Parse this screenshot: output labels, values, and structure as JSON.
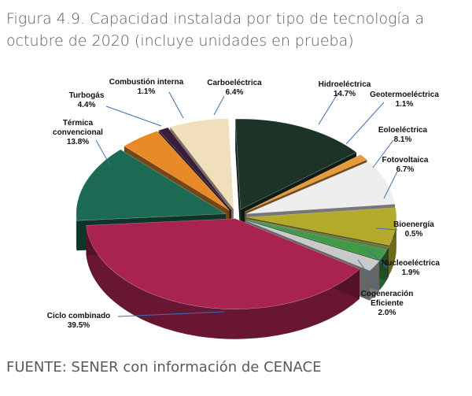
{
  "figure": {
    "title": "Figura 4.9. Capacidad instalada por tipo de tecnología a octubre de 2020 (incluye unidades en prueba)",
    "source": "FUENTE: SENER con información de CENACE"
  },
  "chart_data": {
    "type": "pie",
    "style": "3d-exploded",
    "slices": [
      {
        "name": "Hidroeléctrica",
        "value": 14.7,
        "label": "14.7%",
        "color": "#1c3328"
      },
      {
        "name": "Geotermoeléctrica",
        "value": 1.1,
        "label": "1.1%",
        "color": "#e69a3a"
      },
      {
        "name": "Eoloeléctrica",
        "value": 8.1,
        "label": "8.1%",
        "color": "#eeeeee"
      },
      {
        "name": "Fotovoltaica",
        "value": 6.7,
        "label": "6.7%",
        "color": "#b3a92a"
      },
      {
        "name": "Bioenergía",
        "value": 0.5,
        "label": "0.5%",
        "color": "#5a7a3a"
      },
      {
        "name": "Nucleoeléctrica",
        "value": 1.9,
        "label": "1.9%",
        "color": "#3f9a48"
      },
      {
        "name": "Cogeneración Eficiente",
        "name_lines": [
          "Cogeneración",
          "Eficiente"
        ],
        "value": 2.0,
        "label": "2.0%",
        "color": "#c9c9c9"
      },
      {
        "name": "Ciclo combinado",
        "value": 39.5,
        "label": "39.5%",
        "color": "#a82350"
      },
      {
        "name": "Térmica convencional",
        "name_lines": [
          "Térmica",
          "convencional"
        ],
        "value": 13.8,
        "label": "13.8%",
        "color": "#1d6a54"
      },
      {
        "name": "Turbogás",
        "value": 4.4,
        "label": "4.4%",
        "color": "#e98a28"
      },
      {
        "name": "Combustión interna",
        "value": 1.1,
        "label": "1.1%",
        "color": "#3a1d3a"
      },
      {
        "name": "Carboeléctrica",
        "value": 6.4,
        "label": "6.4%",
        "color": "#f1debb"
      }
    ]
  }
}
